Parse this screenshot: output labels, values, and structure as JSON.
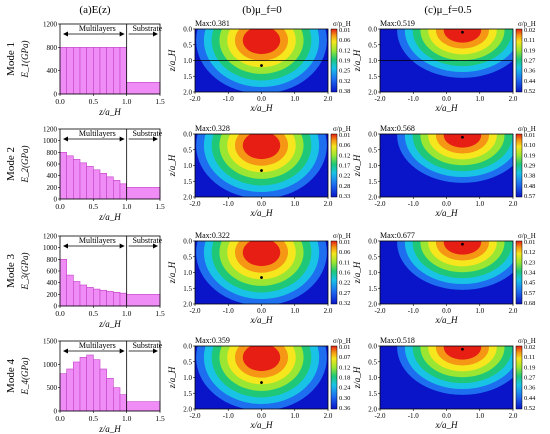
{
  "columns": {
    "a": "(a)E(z)",
    "b": "(b)μ_f=0",
    "c": "(c)μ_f=0.5"
  },
  "profile_axes": {
    "xticks": [
      "0.0",
      "0.5",
      "1.0",
      "1.5"
    ],
    "xlabel": "z/a_H",
    "yticks": [
      [
        "0",
        "400",
        "800",
        "1200"
      ],
      [
        "0",
        "200",
        "400",
        "600",
        "800",
        "1000",
        "1200"
      ],
      [
        "0",
        "200",
        "400",
        "600",
        "800",
        "1000",
        "1200"
      ],
      [
        "0",
        "500",
        "1000",
        "1500"
      ]
    ],
    "ylabels": [
      "E_1(GPa)",
      "E_2(GPa)",
      "E_3(GPa)",
      "E_4(GPa)"
    ],
    "label_multilayers": "Multilayers",
    "label_substrate": "Substrate"
  },
  "contour_axes": {
    "xticks": [
      "-2.0",
      "-1.0",
      "0.0",
      "1.0",
      "2.0"
    ],
    "xlabel": "x/a_H",
    "yticks": [
      "0.0",
      "0.5",
      "1.0",
      "1.5",
      "2.0"
    ],
    "ylabel": "z/a_H",
    "cbar_title": "σ/p_H"
  },
  "modes": [
    {
      "label": "Mode 1",
      "b_max": "Max:0.381",
      "c_max": "Max:0.519",
      "b_ticks": [
        "0.01",
        "0.06",
        "0.12",
        "0.19",
        "0.25",
        "0.32",
        "0.38"
      ],
      "c_ticks": [
        "0.02",
        "0.11",
        "0.19",
        "0.27",
        "0.36",
        "0.44",
        "0.52"
      ]
    },
    {
      "label": "Mode 2",
      "b_max": "Max:0.328",
      "c_max": "Max:0.568",
      "b_ticks": [
        "0.01",
        "0.06",
        "0.12",
        "0.17",
        "0.22",
        "0.28",
        "0.33"
      ],
      "c_ticks": [
        "0.01",
        "0.10",
        "0.19",
        "0.29",
        "0.38",
        "0.48",
        "0.57"
      ]
    },
    {
      "label": "Mode 3",
      "b_max": "Max:0.322",
      "c_max": "Max:0.677",
      "b_ticks": [
        "0.01",
        "0.06",
        "0.11",
        "0.16",
        "0.22",
        "0.27",
        "0.32"
      ],
      "c_ticks": [
        "0.01",
        "0.12",
        "0.23",
        "0.34",
        "0.45",
        "0.57",
        "0.68"
      ]
    },
    {
      "label": "Mode 4",
      "b_max": "Max:0.359",
      "c_max": "Max:0.518",
      "b_ticks": [
        "0.01",
        "0.07",
        "0.12",
        "0.18",
        "0.24",
        "0.30",
        "0.36"
      ],
      "c_ticks": [
        "0.02",
        "0.11",
        "0.19",
        "0.27",
        "0.36",
        "0.44",
        "0.52"
      ]
    }
  ],
  "chart_data": [
    {
      "type": "bar",
      "xlim": [
        0,
        1.5
      ],
      "ylim": [
        0,
        1200
      ],
      "x": [
        0.05,
        0.15,
        0.25,
        0.35,
        0.45,
        0.55,
        0.65,
        0.75,
        0.85,
        0.95,
        1.25
      ],
      "values": [
        800,
        800,
        800,
        800,
        800,
        800,
        800,
        800,
        800,
        800,
        200
      ]
    },
    {
      "type": "bar",
      "xlim": [
        0,
        1.5
      ],
      "ylim": [
        0,
        1200
      ],
      "x": [
        0.05,
        0.15,
        0.25,
        0.35,
        0.45,
        0.55,
        0.65,
        0.75,
        0.85,
        0.95,
        1.25
      ],
      "values": [
        800,
        740,
        680,
        620,
        560,
        500,
        440,
        380,
        320,
        260,
        200
      ]
    },
    {
      "type": "bar",
      "xlim": [
        0,
        1.5
      ],
      "ylim": [
        0,
        1200
      ],
      "x": [
        0.05,
        0.15,
        0.25,
        0.35,
        0.45,
        0.55,
        0.65,
        0.75,
        0.85,
        0.95,
        1.25
      ],
      "values": [
        800,
        530,
        420,
        360,
        320,
        290,
        270,
        250,
        235,
        220,
        200
      ]
    },
    {
      "type": "bar",
      "xlim": [
        0,
        1.5
      ],
      "ylim": [
        0,
        1500
      ],
      "x": [
        0.05,
        0.15,
        0.25,
        0.35,
        0.45,
        0.55,
        0.65,
        0.75,
        0.85,
        0.95,
        1.25
      ],
      "values": [
        800,
        900,
        1050,
        1150,
        1200,
        1100,
        900,
        700,
        500,
        350,
        200
      ]
    }
  ]
}
